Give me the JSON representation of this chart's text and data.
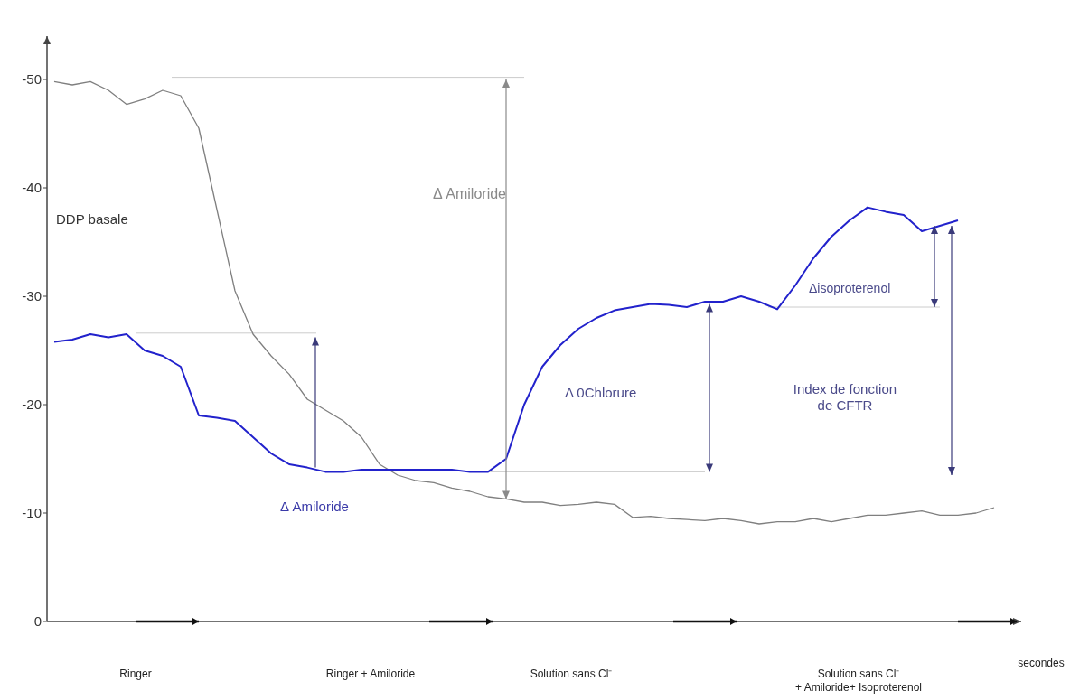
{
  "chart_data": {
    "type": "line",
    "xlabel": "secondes",
    "categories": [
      null,
      null,
      null,
      null,
      null,
      null,
      null,
      null,
      null,
      null,
      null,
      null,
      null,
      null,
      null,
      null,
      null,
      null,
      null,
      null,
      null,
      null,
      null,
      null,
      null,
      null,
      null,
      null,
      null,
      null,
      null,
      null,
      null,
      null,
      null,
      null,
      null,
      null,
      null,
      null,
      null,
      null,
      null,
      null,
      null,
      null,
      null,
      null,
      null,
      null,
      null,
      null,
      null
    ],
    "series": [
      {
        "color": "#7f7f7f",
        "values": [
          -49.8,
          -49.5,
          -49.8,
          -49,
          -47.7,
          -48.2,
          -49,
          -48.5,
          -45.5,
          -38,
          -30.5,
          -26.5,
          -24.5,
          -22.8,
          -20.5,
          -19.5,
          -18.5,
          -17,
          -14.5,
          -13.5,
          -13,
          -12.8,
          -12.3,
          -12,
          -11.5,
          -11.3,
          -11,
          -11,
          -10.7,
          -10.8,
          -11,
          -10.8,
          -9.6,
          -9.7,
          -9.5,
          -9.4,
          -9.3,
          -9.5,
          -9.3,
          -9,
          -9.2,
          -9.2,
          -9.5,
          -9.2,
          -9.5,
          -9.8,
          -9.8,
          -10,
          -10.2,
          -9.8,
          -9.8,
          -10,
          -10.5
        ]
      },
      {
        "color": "#2222cc",
        "values": [
          -25.8,
          -26,
          -26.5,
          -26.2,
          -26.5,
          -25,
          -24.5,
          -23.5,
          -19,
          -18.8,
          -18.5,
          -17,
          -15.5,
          -14.5,
          -14.2,
          -13.8,
          -13.8,
          -14,
          -14,
          -14,
          -14,
          -14,
          -14,
          -13.8,
          -13.8,
          -15,
          -20,
          -23.5,
          -25.5,
          -27,
          -28,
          -28.7,
          -29,
          -29.3,
          -29.2,
          -29,
          -29.5,
          -29.5,
          -30,
          -29.5,
          -28.8,
          -31,
          -33.5,
          -35.5,
          -37,
          -38.2,
          -37.8,
          -37.5,
          -36,
          -36.5,
          -37,
          null,
          null
        ]
      }
    ],
    "ylim": [
      0,
      -54
    ],
    "yticks": [
      0,
      -10,
      -20,
      -30,
      -40,
      -50
    ],
    "grid": false,
    "marker": "none",
    "line_style": "solid",
    "annotations": [
      "DDP basale",
      "Δ Amiloride",
      "Δ Amiloride",
      "Δ 0Chlorure",
      "Δisoproterenol",
      "Index de fonction\nde CFTR",
      "Ringer",
      "Ringer + Amiloride",
      "Solution sans Cl⁻",
      "Solution sans Cl⁻\n+ Amiloride+ Isoproterenol"
    ]
  }
}
